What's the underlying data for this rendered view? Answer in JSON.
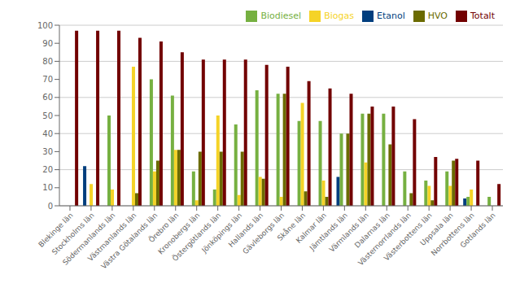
{
  "chart_data": {
    "type": "bar",
    "categories": [
      "Blekinge län",
      "Stockholms län",
      "Södermanlands län",
      "Västmanlands län",
      "Västra Götalands län",
      "Örebro län",
      "Kronobergs län",
      "Östergötlands län",
      "Jönköpings län",
      "Hallands län",
      "Gävleborgs län",
      "Skåne län",
      "Kalmar län",
      "Jämtlands län",
      "Värmlands län",
      "Dalarnas län",
      "Västernorrlands län",
      "Västerbottens län",
      "Uppsala län",
      "Norrbottens län",
      "Gotlands län"
    ],
    "series": [
      {
        "name": "Etanol",
        "color": "#003E7E",
        "values": [
          0,
          22,
          0,
          0,
          0,
          0,
          0,
          0,
          0,
          0,
          0,
          0,
          0,
          16,
          0,
          0,
          0,
          0,
          0,
          4,
          0
        ]
      },
      {
        "name": "Biodiesel",
        "color": "#76B041",
        "values": [
          0,
          0,
          50,
          0,
          70,
          61,
          19,
          9,
          45,
          64,
          62,
          47,
          47,
          40,
          51,
          51,
          19,
          14,
          19,
          5,
          5
        ]
      },
      {
        "name": "Biogas",
        "color": "#F5D327",
        "values": [
          0,
          12,
          9,
          77,
          19,
          31,
          3,
          50,
          6,
          16,
          5,
          57,
          14,
          0,
          24,
          0,
          0,
          11,
          11,
          9,
          0
        ]
      },
      {
        "name": "HVO",
        "color": "#6B6B00",
        "values": [
          0,
          0,
          0,
          7,
          25,
          31,
          30,
          30,
          30,
          15,
          62,
          8,
          5,
          40,
          51,
          34,
          7,
          3,
          25,
          0,
          0
        ]
      },
      {
        "name": "Totalt",
        "color": "#720000",
        "values": [
          97,
          97,
          97,
          93,
          91,
          85,
          81,
          81,
          81,
          78,
          77,
          69,
          65,
          62,
          55,
          55,
          48,
          27,
          26,
          25,
          12
        ]
      }
    ],
    "ylim": [
      0,
      100
    ],
    "yticks": [
      0,
      10,
      20,
      30,
      40,
      50,
      60,
      70,
      80,
      90,
      100
    ],
    "grid": true,
    "legend": "upper right"
  }
}
